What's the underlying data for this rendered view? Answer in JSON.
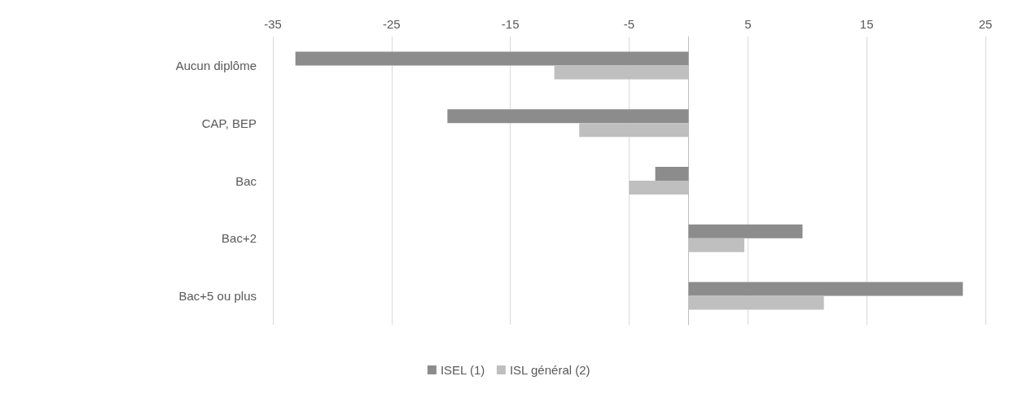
{
  "chart_data": {
    "type": "bar",
    "orientation": "horizontal",
    "categories": [
      "Aucun diplôme",
      "CAP, BEP",
      "Bac",
      "Bac+2",
      "Bac+5 ou plus"
    ],
    "series": [
      {
        "name": "ISEL (1)",
        "color": "#8c8c8c",
        "values": [
          -33.1,
          -20.3,
          -2.8,
          9.6,
          23.1
        ]
      },
      {
        "name": "ISL général (2)",
        "color": "#bfbfbf",
        "values": [
          -11.3,
          -9.2,
          -5.0,
          4.7,
          11.4
        ]
      }
    ],
    "xlim": [
      -35,
      25
    ],
    "xticks": [
      -35,
      -25,
      -15,
      -5,
      5,
      15,
      25
    ],
    "grid": "x",
    "legend": "bottom"
  }
}
